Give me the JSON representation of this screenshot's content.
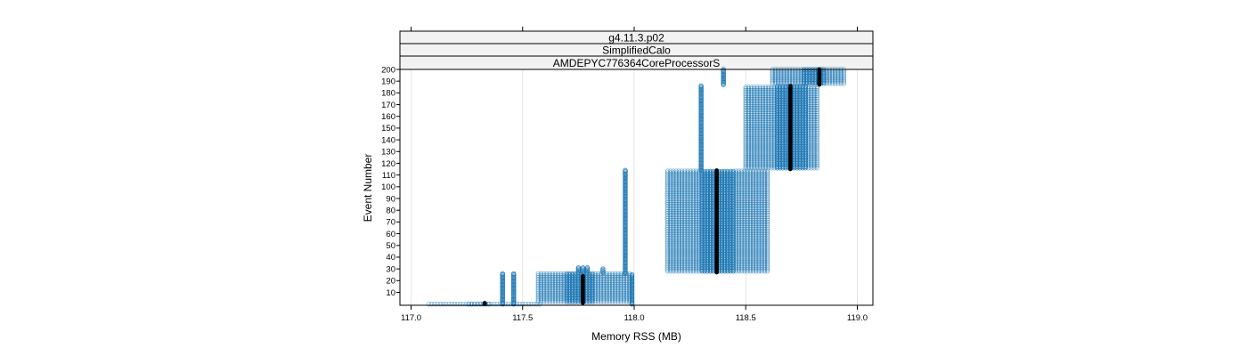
{
  "strips": [
    "g4.11.3.p02",
    "SimplifiedCalo",
    "AMDEPYC776364CoreProcessorS"
  ],
  "colors": {
    "points": "#1f78b4",
    "summary": "#000000",
    "grid": "#e6e6e6",
    "strip_bg": "#f2f2f2"
  },
  "chart_data": {
    "type": "scatter",
    "xlabel": "Memory RSS (MB)",
    "ylabel": "Event Number",
    "xlim": [
      116.95,
      119.07
    ],
    "ylim": [
      -1,
      200
    ],
    "x_ticks": [
      117.0,
      117.5,
      118.0,
      118.5,
      119.0
    ],
    "x_tick_labels": [
      "117.0",
      "117.5",
      "118.0",
      "118.5",
      "119.0"
    ],
    "y_ticks": [
      10,
      20,
      30,
      40,
      50,
      60,
      70,
      80,
      90,
      100,
      110,
      120,
      130,
      140,
      150,
      160,
      170,
      180,
      190,
      200
    ],
    "y_tick_labels": [
      "10",
      "20",
      "30",
      "40",
      "50",
      "60",
      "70",
      "80",
      "90",
      "100",
      "110",
      "120",
      "130",
      "140",
      "150",
      "160",
      "170",
      "180",
      "190",
      "200"
    ],
    "grid": "vertical",
    "point_clusters": [
      {
        "x_min": 117.08,
        "x_max": 117.36,
        "y_min": 0,
        "y_max": 1,
        "dense_from": 117.25,
        "dense_to": 117.35
      },
      {
        "x_min": 117.36,
        "x_max": 117.58,
        "y_min": 0,
        "y_max": 1
      },
      {
        "x_min": 117.57,
        "x_max": 117.99,
        "y_min": 2,
        "y_max": 26,
        "dense_from": 117.69,
        "dense_to": 117.82
      },
      {
        "x_min": 118.15,
        "x_max": 118.6,
        "y_min": 28,
        "y_max": 114,
        "dense_from": 118.3,
        "dense_to": 118.45
      },
      {
        "x_min": 118.5,
        "x_max": 118.83,
        "y_min": 116,
        "y_max": 186,
        "dense_from": 118.63,
        "dense_to": 118.78
      },
      {
        "x_min": 118.62,
        "x_max": 118.95,
        "y_min": 188,
        "y_max": 200,
        "dense_from": 118.76,
        "dense_to": 118.86
      }
    ],
    "point_columns": [
      {
        "x": 117.41,
        "y_min": 0,
        "y_max": 26
      },
      {
        "x": 117.46,
        "y_min": 0,
        "y_max": 26
      },
      {
        "x": 117.75,
        "y_min": 27,
        "y_max": 31
      },
      {
        "x": 117.77,
        "y_min": 27,
        "y_max": 31
      },
      {
        "x": 117.79,
        "y_min": 27,
        "y_max": 31
      },
      {
        "x": 117.86,
        "y_min": 27,
        "y_max": 30
      },
      {
        "x": 117.96,
        "y_min": 26,
        "y_max": 114
      },
      {
        "x": 117.99,
        "y_min": 0,
        "y_max": 25
      },
      {
        "x": 118.3,
        "y_min": 114,
        "y_max": 186
      },
      {
        "x": 118.4,
        "y_min": 187,
        "y_max": 200
      }
    ],
    "summary_segments": [
      {
        "x": 117.33,
        "y_min": 0,
        "y_max": 1
      },
      {
        "x": 117.77,
        "y_min": 1,
        "y_max": 24
      },
      {
        "x": 118.37,
        "y_min": 27,
        "y_max": 114
      },
      {
        "x": 118.7,
        "y_min": 115,
        "y_max": 186
      },
      {
        "x": 118.83,
        "y_min": 187,
        "y_max": 200
      }
    ]
  }
}
